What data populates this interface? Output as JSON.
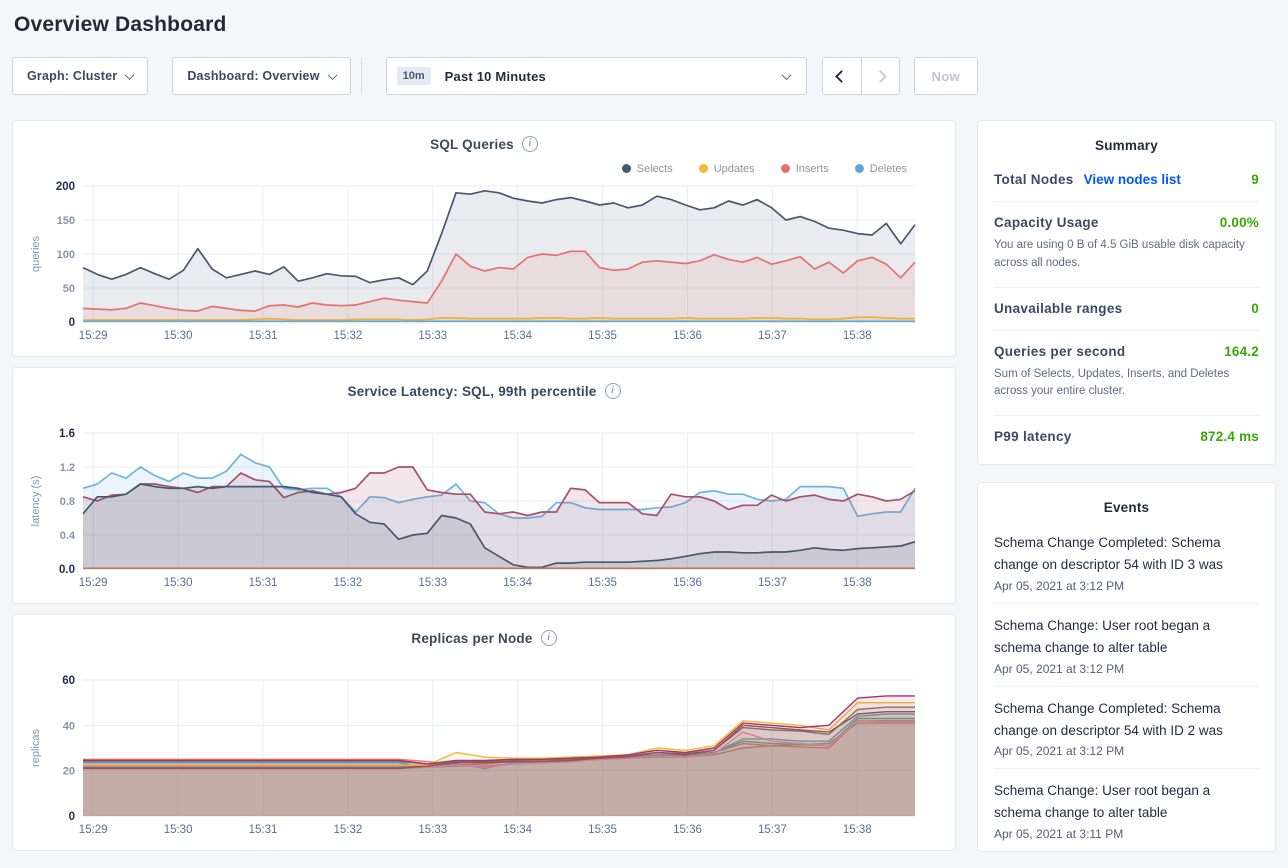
{
  "page": {
    "title": "Overview Dashboard"
  },
  "colors": {
    "value_green": "#37a806",
    "link_blue": "#0055ff",
    "selects": "#475872",
    "updates": "#efba35",
    "inserts": "#e5726f",
    "deletes": "#61a8d8"
  },
  "toolbar": {
    "graph_dropdown": "Graph: Cluster",
    "dashboard_dropdown": "Dashboard: Overview",
    "time_badge": "10m",
    "time_label": "Past 10 Minutes",
    "now_button": "Now"
  },
  "summary": {
    "heading": "Summary",
    "rows": [
      {
        "label": "Total Nodes",
        "link": "View nodes list",
        "value": "9",
        "desc": ""
      },
      {
        "label": "Capacity Usage",
        "link": "",
        "value": "0.00%",
        "desc": "You are using 0 B of 4.5 GiB usable disk capacity across all nodes."
      },
      {
        "label": "Unavailable ranges",
        "link": "",
        "value": "0",
        "desc": ""
      },
      {
        "label": "Queries per second",
        "link": "",
        "value": "164.2",
        "desc": "Sum of Selects, Updates, Inserts, and Deletes across your entire cluster."
      },
      {
        "label": "P99 latency",
        "link": "",
        "value": "872.4 ms",
        "desc": ""
      }
    ]
  },
  "events": {
    "heading": "Events",
    "items": [
      {
        "text": "Schema Change Completed: Schema change on descriptor 54 with ID 3 was",
        "time": "Apr 05, 2021 at 3:12 PM"
      },
      {
        "text": "Schema Change: User root began a schema change to alter table",
        "time": "Apr 05, 2021 at 3:12 PM"
      },
      {
        "text": "Schema Change Completed: Schema change on descriptor 54 with ID 2 was",
        "time": "Apr 05, 2021 at 3:12 PM"
      },
      {
        "text": "Schema Change: User root began a schema change to alter table",
        "time": "Apr 05, 2021 at 3:11 PM"
      }
    ]
  },
  "chart_data": [
    {
      "type": "area",
      "title": "SQL Queries",
      "ylabel": "queries",
      "ylim": [
        0,
        200
      ],
      "yticks": [
        "0",
        "50",
        "100",
        "150",
        "200"
      ],
      "x_labels": [
        "15:29",
        "15:30",
        "15:31",
        "15:32",
        "15:33",
        "15:34",
        "15:35",
        "15:36",
        "15:37",
        "15:38"
      ],
      "legend_position": "top-right",
      "grid": true,
      "fill_opacity": 0.12,
      "line_width": 1.7,
      "series": [
        {
          "name": "Selects",
          "color": "#475872",
          "values": [
            80,
            70,
            63,
            70,
            80,
            71,
            63,
            76,
            108,
            78,
            65,
            70,
            75,
            70,
            81,
            60,
            65,
            71,
            68,
            67,
            58,
            62,
            65,
            55,
            75,
            130,
            190,
            188,
            193,
            190,
            182,
            178,
            175,
            180,
            183,
            178,
            172,
            175,
            168,
            172,
            185,
            180,
            172,
            165,
            168,
            178,
            172,
            180,
            168,
            150,
            155,
            148,
            138,
            135,
            130,
            128,
            145,
            115,
            143
          ]
        },
        {
          "name": "Updates",
          "color": "#efba35",
          "values": [
            3,
            3,
            3,
            3,
            3,
            3,
            3,
            3,
            3,
            3,
            3,
            3,
            4,
            5,
            4,
            3,
            3,
            3,
            3,
            4,
            4,
            4,
            4,
            3,
            4,
            6,
            6,
            5,
            5,
            5,
            5,
            5,
            6,
            6,
            5,
            5,
            6,
            5,
            5,
            5,
            5,
            5,
            6,
            5,
            5,
            5,
            5,
            6,
            6,
            5,
            5,
            4,
            4,
            5,
            7,
            7,
            6,
            5,
            5
          ]
        },
        {
          "name": "Inserts",
          "color": "#e5726f",
          "values": [
            20,
            19,
            18,
            20,
            28,
            24,
            20,
            17,
            16,
            23,
            20,
            17,
            16,
            24,
            25,
            22,
            28,
            25,
            24,
            25,
            30,
            35,
            32,
            30,
            28,
            60,
            100,
            82,
            75,
            80,
            78,
            95,
            100,
            98,
            104,
            104,
            80,
            76,
            78,
            88,
            90,
            88,
            86,
            90,
            99,
            92,
            88,
            95,
            85,
            90,
            96,
            78,
            88,
            72,
            90,
            95,
            85,
            65,
            88
          ]
        },
        {
          "name": "Deletes",
          "color": "#61a8d8",
          "values": [
            1,
            1,
            1,
            1,
            1,
            1,
            1,
            1,
            1,
            1,
            1,
            1,
            1,
            1,
            1,
            1,
            1,
            1,
            1,
            1,
            1,
            1,
            1,
            1,
            1,
            1,
            1,
            1,
            1,
            1,
            1,
            1,
            1,
            1,
            1,
            1,
            1,
            1,
            1,
            1,
            1,
            1,
            1,
            1,
            1,
            1,
            1,
            1,
            1,
            1,
            1,
            1,
            1,
            1,
            1,
            1,
            1,
            1,
            1
          ]
        }
      ]
    },
    {
      "type": "area",
      "title": "Service Latency: SQL, 99th percentile",
      "ylabel": "latency (s)",
      "ylim": [
        0,
        1.6
      ],
      "yticks": [
        "0.0",
        "0.4",
        "0.8",
        "1.2",
        "1.6"
      ],
      "x_labels": [
        "15:29",
        "15:30",
        "15:31",
        "15:32",
        "15:33",
        "15:34",
        "15:35",
        "15:36",
        "15:37",
        "15:38"
      ],
      "legend_position": "hidden",
      "grid": true,
      "fill_opacity": 0.14,
      "line_width": 1.7,
      "series": [
        {
          "name": "",
          "color": "#6fb3df",
          "values": [
            0.95,
            1.0,
            1.13,
            1.07,
            1.2,
            1.1,
            1.03,
            1.13,
            1.07,
            1.07,
            1.15,
            1.35,
            1.25,
            1.2,
            0.95,
            0.93,
            0.95,
            0.95,
            0.85,
            0.67,
            0.85,
            0.84,
            0.78,
            0.82,
            0.85,
            0.87,
            1.0,
            0.8,
            0.78,
            0.65,
            0.6,
            0.6,
            0.62,
            0.78,
            0.78,
            0.72,
            0.7,
            0.7,
            0.7,
            0.7,
            0.72,
            0.73,
            0.78,
            0.9,
            0.92,
            0.88,
            0.88,
            0.82,
            0.8,
            0.82,
            0.97,
            0.97,
            0.97,
            0.95,
            0.62,
            0.65,
            0.67,
            0.67,
            0.95
          ]
        },
        {
          "name": "",
          "color": "#a8506b",
          "values": [
            0.85,
            0.8,
            0.87,
            0.88,
            1.0,
            1.0,
            0.97,
            0.95,
            0.9,
            0.97,
            0.97,
            1.13,
            1.05,
            1.03,
            0.84,
            0.9,
            0.92,
            0.88,
            0.9,
            0.95,
            1.13,
            1.13,
            1.2,
            1.2,
            0.93,
            0.9,
            0.88,
            0.88,
            0.67,
            0.65,
            0.67,
            0.63,
            0.67,
            0.67,
            0.95,
            0.93,
            0.78,
            0.78,
            0.78,
            0.65,
            0.63,
            0.88,
            0.85,
            0.85,
            0.8,
            0.7,
            0.75,
            0.75,
            0.87,
            0.8,
            0.85,
            0.87,
            0.82,
            0.8,
            0.88,
            0.85,
            0.8,
            0.82,
            0.92
          ]
        },
        {
          "name": "",
          "color": "#475872",
          "values": [
            0.65,
            0.85,
            0.85,
            0.88,
            1.0,
            0.97,
            0.95,
            0.95,
            0.97,
            0.95,
            0.97,
            0.97,
            0.97,
            0.97,
            0.97,
            0.95,
            0.9,
            0.88,
            0.85,
            0.65,
            0.55,
            0.53,
            0.35,
            0.4,
            0.42,
            0.63,
            0.6,
            0.53,
            0.25,
            0.15,
            0.05,
            0.02,
            0.02,
            0.07,
            0.07,
            0.08,
            0.08,
            0.08,
            0.08,
            0.09,
            0.1,
            0.12,
            0.15,
            0.18,
            0.2,
            0.2,
            0.19,
            0.19,
            0.2,
            0.2,
            0.22,
            0.25,
            0.23,
            0.22,
            0.24,
            0.25,
            0.26,
            0.27,
            0.32
          ]
        },
        {
          "name": "",
          "color": "#bd7a50",
          "values": [
            0.008,
            0.008,
            0.008,
            0.008,
            0.008,
            0.008,
            0.008,
            0.008,
            0.008,
            0.008,
            0.008,
            0.008,
            0.008,
            0.008,
            0.008,
            0.008,
            0.008,
            0.008,
            0.008,
            0.008,
            0.008,
            0.008,
            0.008,
            0.008,
            0.008,
            0.008,
            0.008,
            0.008,
            0.008,
            0.008,
            0.008,
            0.008,
            0.008,
            0.008,
            0.008,
            0.008,
            0.008,
            0.008,
            0.008,
            0.008,
            0.008,
            0.008,
            0.008,
            0.008,
            0.008,
            0.008,
            0.008,
            0.008,
            0.008,
            0.008,
            0.008,
            0.008,
            0.008,
            0.008,
            0.008,
            0.008,
            0.008,
            0.008,
            0.008
          ]
        }
      ]
    },
    {
      "type": "area",
      "title": "Replicas per Node",
      "ylabel": "replicas",
      "ylim": [
        0,
        60
      ],
      "yticks": [
        "0",
        "20",
        "40",
        "60"
      ],
      "x_labels": [
        "15:29",
        "15:30",
        "15:31",
        "15:32",
        "15:33",
        "15:34",
        "15:35",
        "15:36",
        "15:37",
        "15:38"
      ],
      "legend_position": "hidden",
      "grid": true,
      "fill_opacity": 0.1,
      "line_width": 1.4,
      "series": [
        {
          "name": "",
          "color": "#b08968",
          "values": [
            21,
            21,
            21,
            21,
            21,
            21,
            21,
            21,
            21,
            21,
            21,
            21,
            21.5,
            22,
            22,
            23,
            23.5,
            24,
            25,
            25.5,
            26,
            26,
            27,
            30,
            31,
            31.5,
            32,
            41,
            41,
            41
          ]
        },
        {
          "name": "",
          "color": "#e5726f",
          "values": [
            25,
            25,
            25,
            25,
            25,
            25,
            25,
            25,
            25,
            25,
            25,
            25,
            24,
            22.5,
            23,
            24,
            24.5,
            25,
            25.5,
            26,
            27,
            27,
            28,
            32,
            31,
            30.5,
            30,
            42,
            42,
            42
          ]
        },
        {
          "name": "",
          "color": "#4fb06d",
          "values": [
            24,
            24,
            24,
            24,
            24,
            24,
            24,
            24,
            24,
            24,
            24,
            24,
            23,
            23.5,
            24,
            24.5,
            24.5,
            25,
            25.5,
            26,
            27,
            26.5,
            28,
            33,
            32,
            31.5,
            31,
            43,
            43,
            43
          ]
        },
        {
          "name": "",
          "color": "#5c9fd4",
          "values": [
            23.5,
            23.5,
            23.5,
            23.5,
            23.5,
            23.5,
            23.5,
            23.5,
            23.5,
            23.5,
            23.5,
            23.5,
            21.5,
            23,
            21,
            23.5,
            24,
            24.5,
            25,
            26,
            27,
            26.5,
            28,
            34,
            34,
            33,
            33,
            44,
            45,
            45
          ]
        },
        {
          "name": "",
          "color": "#e891b5",
          "values": [
            22,
            22,
            22,
            22,
            22,
            22,
            22,
            22,
            22,
            22,
            22,
            22,
            21.5,
            22.5,
            21.5,
            23,
            23.5,
            24,
            25,
            25.5,
            26.5,
            26,
            27.5,
            37,
            33,
            32,
            31,
            42,
            41.5,
            41.5
          ]
        },
        {
          "name": "",
          "color": "#6b7280",
          "values": [
            21.5,
            21.5,
            21.5,
            21.5,
            21.5,
            21.5,
            21.5,
            21.5,
            21.5,
            21.5,
            21.5,
            21.5,
            22,
            24,
            24,
            24.5,
            25,
            25,
            26,
            26.5,
            28,
            27.5,
            29,
            39,
            38,
            37.5,
            36,
            47,
            48,
            48
          ]
        },
        {
          "name": "",
          "color": "#8e4a5e",
          "values": [
            21,
            21,
            21,
            21,
            21,
            21,
            21,
            21,
            21,
            21,
            21,
            21,
            22,
            23.5,
            23.5,
            24,
            24,
            24.5,
            25.5,
            26,
            28,
            27,
            29,
            40,
            39,
            38,
            37,
            45,
            46,
            46
          ]
        },
        {
          "name": "",
          "color": "#efba35",
          "values": [
            22.5,
            22.5,
            22.5,
            22.5,
            22.5,
            22.5,
            22.5,
            22.5,
            22.5,
            22.5,
            22.5,
            22.5,
            22.5,
            28,
            26,
            25.5,
            25.5,
            26,
            26.5,
            27,
            30,
            29,
            31,
            42,
            41,
            40,
            38,
            50,
            50,
            50
          ]
        },
        {
          "name": "",
          "color": "#a93266",
          "values": [
            24.5,
            24.5,
            24.5,
            24.5,
            24.5,
            24.5,
            24.5,
            24.5,
            24.5,
            24.5,
            24.5,
            24.5,
            23,
            24.5,
            24.5,
            25,
            25,
            25.5,
            26,
            27,
            29,
            28,
            30,
            41,
            40,
            39,
            40,
            52,
            53,
            53
          ]
        }
      ]
    }
  ]
}
